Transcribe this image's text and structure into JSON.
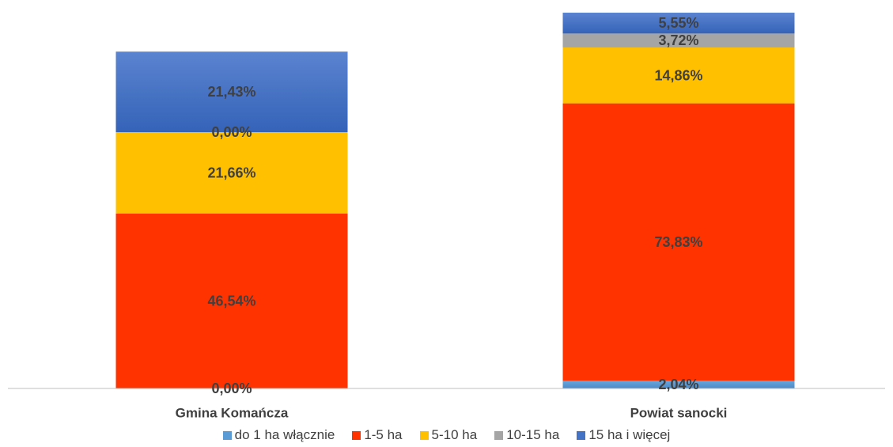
{
  "chart_data": {
    "type": "bar",
    "stacked": true,
    "categories": [
      "Gmina Komańcza",
      "Powiat sanocki"
    ],
    "series": [
      {
        "name": "do 1 ha włącznie",
        "color": "#5b9bd5",
        "values": [
          0.0,
          2.04
        ],
        "labels": [
          "0,00%",
          "2,04%"
        ]
      },
      {
        "name": "1-5 ha",
        "color": "#ff3300",
        "values": [
          46.54,
          73.83
        ],
        "labels": [
          "46,54%",
          "73,83%"
        ]
      },
      {
        "name": "5-10 ha",
        "color": "#ffc000",
        "values": [
          21.66,
          14.86
        ],
        "labels": [
          "21,66%",
          "14,86%"
        ]
      },
      {
        "name": "10-15 ha",
        "color": "#a5a5a5",
        "values": [
          0.0,
          3.72
        ],
        "labels": [
          "0,00%",
          "3,72%"
        ]
      },
      {
        "name": "15 ha i więcej",
        "color": "#4472c4",
        "values": [
          21.43,
          5.55
        ],
        "labels": [
          "21,43%",
          "5,55%"
        ]
      }
    ],
    "ylim": [
      0,
      100
    ],
    "grid": false,
    "legend_position": "bottom"
  }
}
